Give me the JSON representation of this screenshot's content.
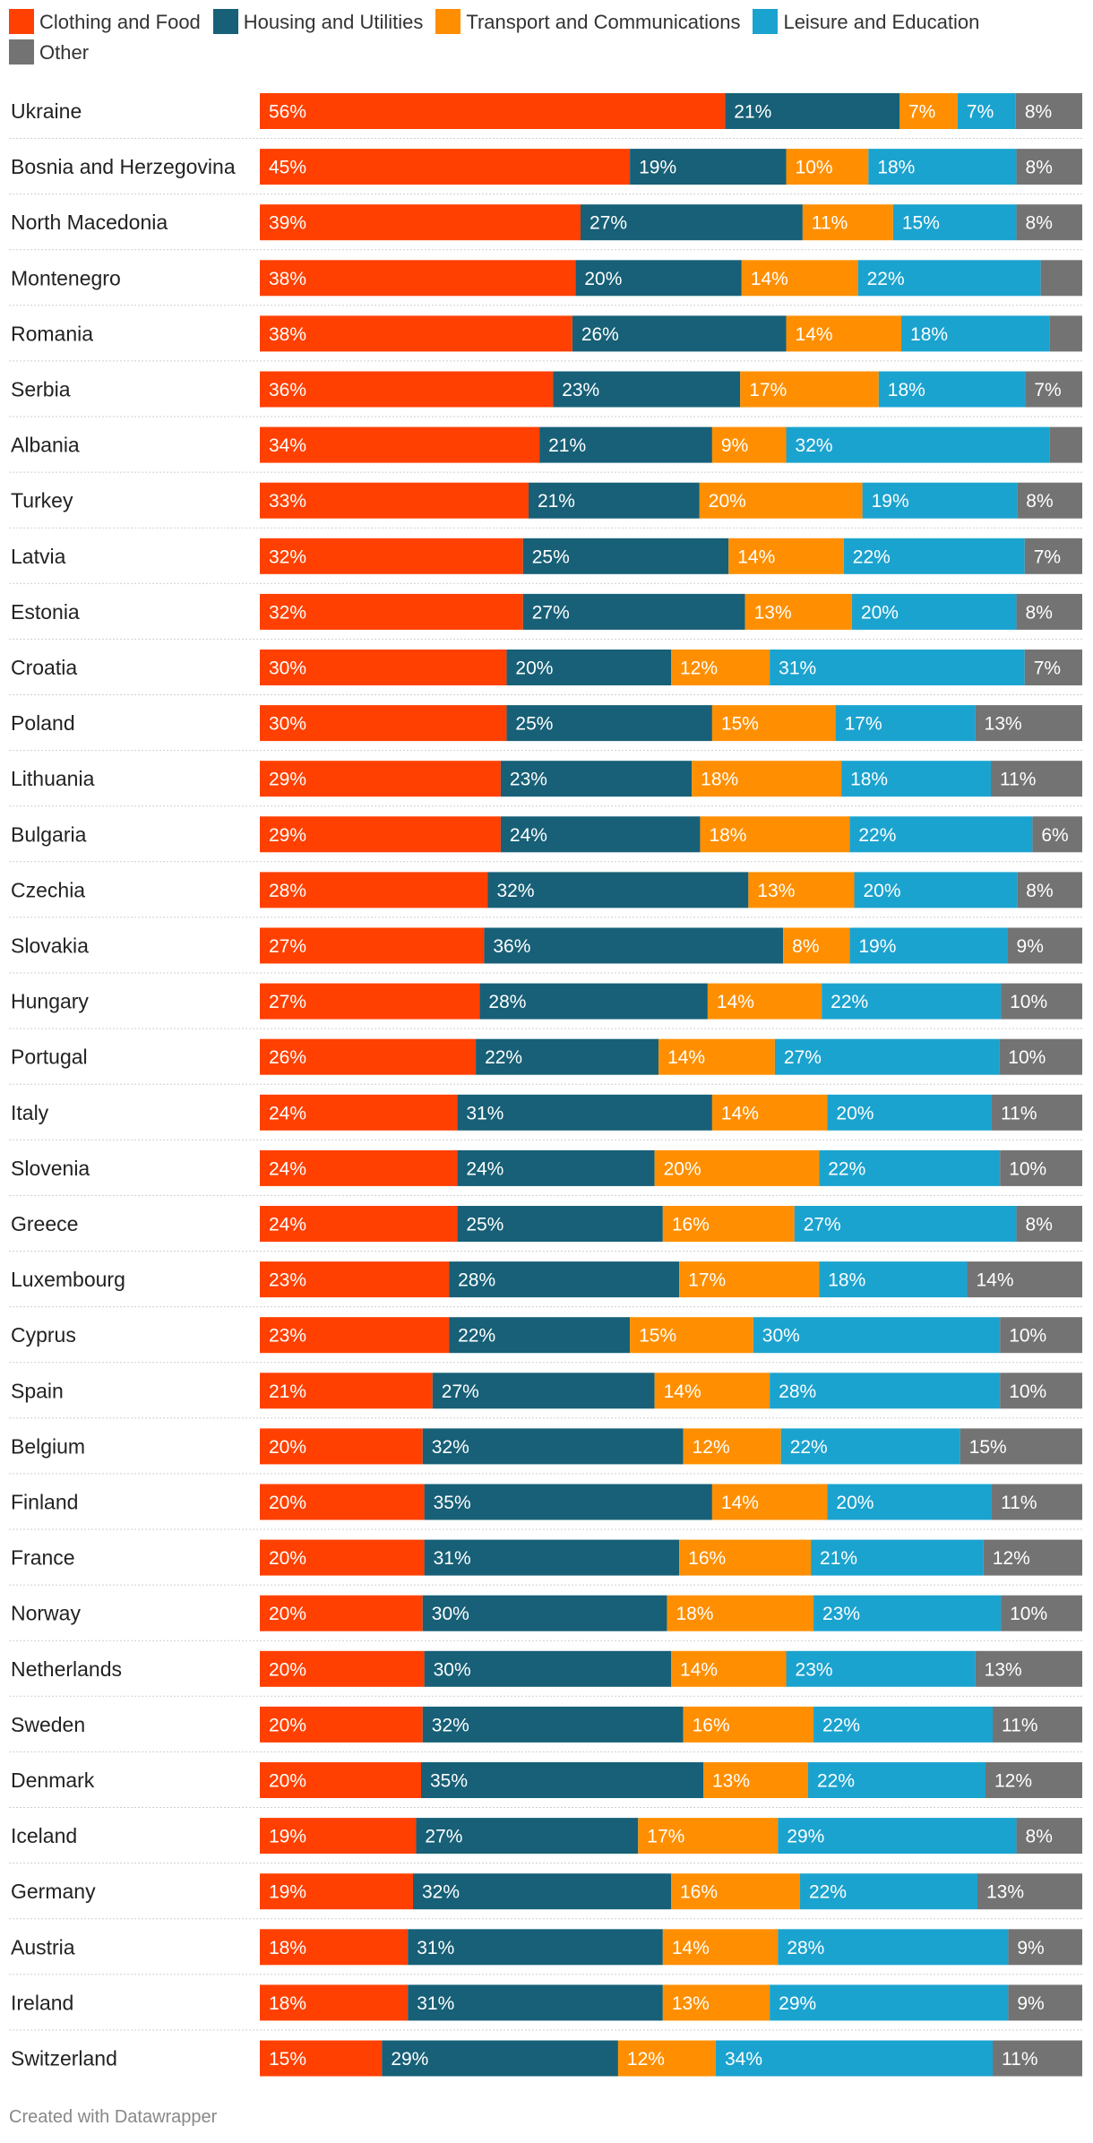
{
  "legend": [
    {
      "label": "Clothing and Food",
      "color": "#ff4000"
    },
    {
      "label": "Housing and Utilities",
      "color": "#176077"
    },
    {
      "label": "Transport and Communications",
      "color": "#ff8f00"
    },
    {
      "label": "Leisure and Education",
      "color": "#1ba3cf"
    },
    {
      "label": "Other",
      "color": "#737373"
    }
  ],
  "credit": "Created with Datawrapper",
  "chart_data": {
    "type": "bar",
    "orientation": "horizontal-stacked",
    "unit": "%",
    "categories": [
      "Ukraine",
      "Bosnia and Herzegovina",
      "North Macedonia",
      "Montenegro",
      "Romania",
      "Serbia",
      "Albania",
      "Turkey",
      "Latvia",
      "Estonia",
      "Croatia",
      "Poland",
      "Lithuania",
      "Bulgaria",
      "Czechia",
      "Slovakia",
      "Hungary",
      "Portugal",
      "Italy",
      "Slovenia",
      "Greece",
      "Luxembourg",
      "Cyprus",
      "Spain",
      "Belgium",
      "Finland",
      "France",
      "Norway",
      "Netherlands",
      "Sweden",
      "Denmark",
      "Iceland",
      "Germany",
      "Austria",
      "Ireland",
      "Switzerland"
    ],
    "series": [
      {
        "name": "Clothing and Food",
        "values": [
          56,
          45,
          39,
          38,
          38,
          36,
          34,
          33,
          32,
          32,
          30,
          30,
          29,
          29,
          28,
          27,
          27,
          26,
          24,
          24,
          24,
          23,
          23,
          21,
          20,
          20,
          20,
          20,
          20,
          20,
          20,
          19,
          19,
          18,
          18,
          15
        ]
      },
      {
        "name": "Housing and Utilities",
        "values": [
          21,
          19,
          27,
          20,
          26,
          23,
          21,
          21,
          25,
          27,
          20,
          25,
          23,
          24,
          32,
          36,
          28,
          22,
          31,
          24,
          25,
          28,
          22,
          27,
          32,
          35,
          31,
          30,
          30,
          32,
          35,
          27,
          32,
          31,
          31,
          29
        ]
      },
      {
        "name": "Transport and Communications",
        "values": [
          7,
          10,
          11,
          14,
          14,
          17,
          9,
          20,
          14,
          13,
          12,
          15,
          18,
          18,
          13,
          8,
          14,
          14,
          14,
          20,
          16,
          17,
          15,
          14,
          12,
          14,
          16,
          18,
          14,
          16,
          13,
          17,
          16,
          14,
          13,
          12
        ]
      },
      {
        "name": "Leisure and Education",
        "values": [
          7,
          18,
          15,
          22,
          18,
          18,
          32,
          19,
          22,
          20,
          31,
          17,
          18,
          22,
          20,
          19,
          22,
          27,
          20,
          22,
          27,
          18,
          30,
          28,
          22,
          20,
          21,
          23,
          23,
          22,
          22,
          29,
          22,
          28,
          29,
          34
        ]
      },
      {
        "name": "Other",
        "values": [
          8,
          8,
          8,
          5,
          4,
          7,
          4,
          8,
          7,
          8,
          7,
          13,
          11,
          6,
          8,
          9,
          10,
          10,
          11,
          10,
          8,
          14,
          10,
          10,
          15,
          11,
          12,
          10,
          13,
          11,
          12,
          8,
          13,
          9,
          9,
          11
        ]
      }
    ],
    "value_labels": [
      [
        "56%",
        "21%",
        "7%",
        "7%",
        "8%"
      ],
      [
        "45%",
        "19%",
        "10%",
        "18%",
        "8%"
      ],
      [
        "39%",
        "27%",
        "11%",
        "15%",
        "8%"
      ],
      [
        "38%",
        "20%",
        "14%",
        "22%",
        ""
      ],
      [
        "38%",
        "26%",
        "14%",
        "18%",
        ""
      ],
      [
        "36%",
        "23%",
        "17%",
        "18%",
        "7%"
      ],
      [
        "34%",
        "21%",
        "9%",
        "32%",
        ""
      ],
      [
        "33%",
        "21%",
        "20%",
        "19%",
        "8%"
      ],
      [
        "32%",
        "25%",
        "14%",
        "22%",
        "7%"
      ],
      [
        "32%",
        "27%",
        "13%",
        "20%",
        "8%"
      ],
      [
        "30%",
        "20%",
        "12%",
        "31%",
        "7%"
      ],
      [
        "30%",
        "25%",
        "15%",
        "17%",
        "13%"
      ],
      [
        "29%",
        "23%",
        "18%",
        "18%",
        "11%"
      ],
      [
        "29%",
        "24%",
        "18%",
        "22%",
        "6%"
      ],
      [
        "28%",
        "32%",
        "13%",
        "20%",
        "8%"
      ],
      [
        "27%",
        "36%",
        "8%",
        "19%",
        "9%"
      ],
      [
        "27%",
        "28%",
        "14%",
        "22%",
        "10%"
      ],
      [
        "26%",
        "22%",
        "14%",
        "27%",
        "10%"
      ],
      [
        "24%",
        "31%",
        "14%",
        "20%",
        "11%"
      ],
      [
        "24%",
        "24%",
        "20%",
        "22%",
        "10%"
      ],
      [
        "24%",
        "25%",
        "16%",
        "27%",
        "8%"
      ],
      [
        "23%",
        "28%",
        "17%",
        "18%",
        "14%"
      ],
      [
        "23%",
        "22%",
        "15%",
        "30%",
        "10%"
      ],
      [
        "21%",
        "27%",
        "14%",
        "28%",
        "10%"
      ],
      [
        "20%",
        "32%",
        "12%",
        "22%",
        "15%"
      ],
      [
        "20%",
        "35%",
        "14%",
        "20%",
        "11%"
      ],
      [
        "20%",
        "31%",
        "16%",
        "21%",
        "12%"
      ],
      [
        "20%",
        "30%",
        "18%",
        "23%",
        "10%"
      ],
      [
        "20%",
        "30%",
        "14%",
        "23%",
        "13%"
      ],
      [
        "20%",
        "32%",
        "16%",
        "22%",
        "11%"
      ],
      [
        "20%",
        "35%",
        "13%",
        "22%",
        "12%"
      ],
      [
        "19%",
        "27%",
        "17%",
        "29%",
        "8%"
      ],
      [
        "19%",
        "32%",
        "16%",
        "22%",
        "13%"
      ],
      [
        "18%",
        "31%",
        "14%",
        "28%",
        "9%"
      ],
      [
        "18%",
        "31%",
        "13%",
        "29%",
        "9%"
      ],
      [
        "15%",
        "29%",
        "12%",
        "34%",
        "11%"
      ]
    ],
    "xlim": [
      0,
      100
    ],
    "legend_position": "top"
  }
}
